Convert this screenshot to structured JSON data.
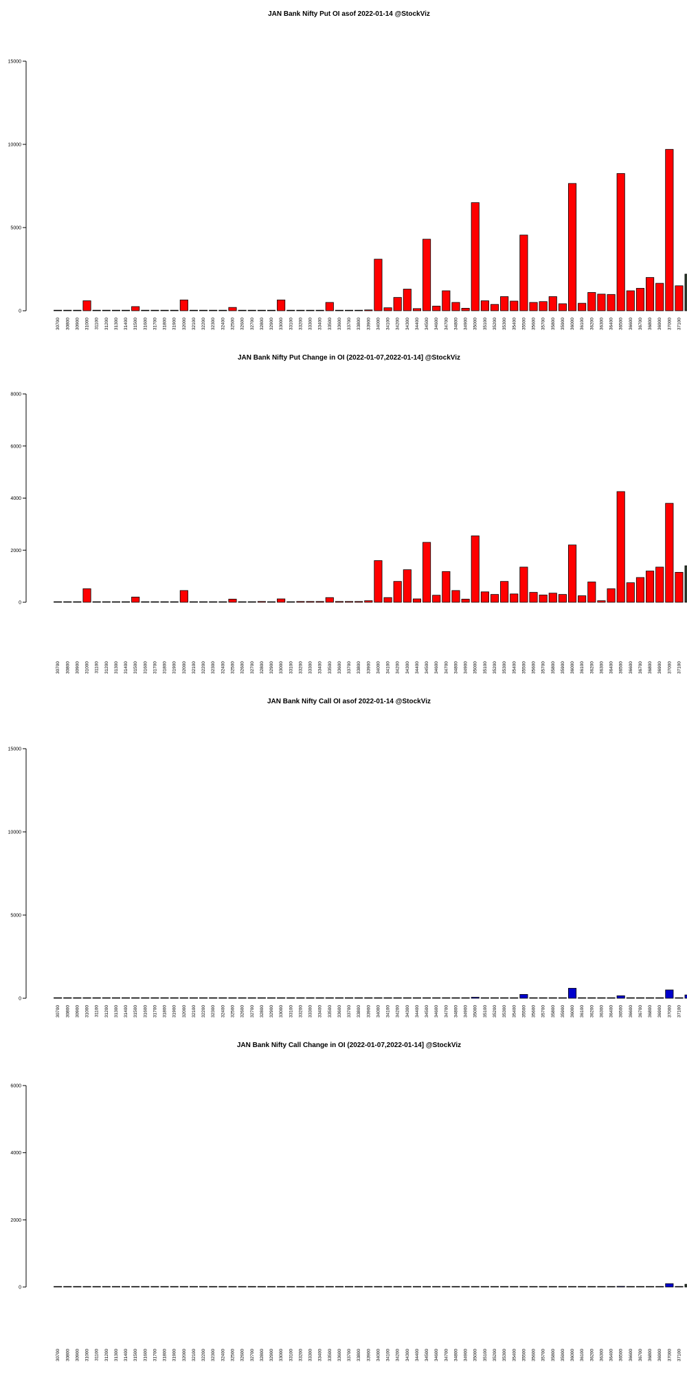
{
  "strikes": [
    "30700",
    "30800",
    "30900",
    "31000",
    "31100",
    "31200",
    "31300",
    "31400",
    "31500",
    "31600",
    "31700",
    "31800",
    "31900",
    "32000",
    "32100",
    "32200",
    "32300",
    "32400",
    "32500",
    "32600",
    "32700",
    "32800",
    "32900",
    "33000",
    "33100",
    "33200",
    "33300",
    "33400",
    "33500",
    "33600",
    "33700",
    "33800",
    "33900",
    "34000",
    "34100",
    "34200",
    "34300",
    "34400",
    "34500",
    "34600",
    "34700",
    "34800",
    "34900",
    "35000",
    "35100",
    "35200",
    "35300",
    "35400",
    "35500",
    "35600",
    "35700",
    "35800",
    "35900",
    "36000",
    "36100",
    "36200",
    "36300",
    "36400",
    "36500",
    "36600",
    "36700",
    "36800",
    "36900",
    "37000",
    "37100"
  ],
  "chart_data": [
    {
      "type": "bar",
      "title": "JAN Bank Nifty Put OI asof 2022-01-14 @StockViz",
      "xlabel": "",
      "ylabel": "",
      "ylim": [
        0,
        15000
      ],
      "yticks": [
        0,
        5000,
        10000,
        15000
      ],
      "color": "#ff0000",
      "values": [
        10,
        10,
        10,
        600,
        10,
        10,
        10,
        10,
        250,
        10,
        10,
        10,
        10,
        650,
        10,
        10,
        10,
        10,
        200,
        10,
        10,
        10,
        10,
        650,
        10,
        10,
        10,
        30,
        500,
        10,
        10,
        10,
        50,
        3100,
        180,
        800,
        1300,
        130,
        4300,
        280,
        1200,
        500,
        150,
        6500,
        600,
        380,
        850,
        580,
        4550,
        500,
        550,
        850,
        420,
        7650,
        450,
        1100,
        1000,
        980,
        8250,
        1200,
        1350,
        2000,
        1650,
        9700,
        1500
      ],
      "partial_next": {
        "value": 2200,
        "color": "#2e3b2e"
      }
    },
    {
      "type": "bar",
      "title": "JAN Bank Nifty Put Change in OI (2022-01-07,2022-01-14] @StockViz",
      "xlabel": "",
      "ylabel": "",
      "ylim": [
        0,
        8000
      ],
      "yticks": [
        0,
        2000,
        4000,
        6000,
        8000
      ],
      "color": "#ff0000",
      "values": [
        5,
        5,
        5,
        520,
        5,
        5,
        5,
        5,
        200,
        5,
        5,
        5,
        5,
        450,
        5,
        5,
        5,
        5,
        120,
        5,
        5,
        30,
        5,
        130,
        5,
        30,
        30,
        30,
        180,
        30,
        30,
        30,
        60,
        1600,
        180,
        800,
        1250,
        130,
        2300,
        270,
        1180,
        450,
        120,
        2550,
        400,
        300,
        800,
        320,
        1350,
        380,
        280,
        350,
        300,
        2200,
        250,
        780,
        60,
        520,
        4250,
        750,
        950,
        1200,
        1350,
        3800,
        1150
      ],
      "partial_next": {
        "value": 1400,
        "color": "#2e3b2e"
      }
    },
    {
      "type": "bar",
      "title": "JAN Bank Nifty Call OI asof 2022-01-14 @StockViz",
      "xlabel": "",
      "ylabel": "",
      "ylim": [
        0,
        15000
      ],
      "yticks": [
        0,
        5000,
        10000,
        15000
      ],
      "color": "#0000cc",
      "values": [
        5,
        5,
        5,
        5,
        5,
        5,
        5,
        5,
        5,
        5,
        5,
        5,
        5,
        5,
        5,
        5,
        5,
        5,
        5,
        5,
        5,
        5,
        5,
        5,
        5,
        5,
        5,
        5,
        5,
        5,
        5,
        5,
        5,
        5,
        5,
        5,
        5,
        5,
        5,
        5,
        5,
        5,
        5,
        60,
        5,
        5,
        5,
        5,
        230,
        5,
        5,
        5,
        5,
        600,
        5,
        5,
        5,
        5,
        150,
        5,
        5,
        5,
        5,
        500,
        5
      ],
      "partial_next": {
        "value": 200,
        "color": "#0000cc"
      }
    },
    {
      "type": "bar",
      "title": "JAN Bank Nifty Call Change in OI (2022-01-07,2022-01-14] @StockViz",
      "xlabel": "",
      "ylabel": "",
      "ylim": [
        0,
        6000
      ],
      "yticks": [
        0,
        2000,
        4000,
        6000
      ],
      "color": "#0000cc",
      "values": [
        5,
        5,
        5,
        5,
        5,
        5,
        5,
        5,
        5,
        5,
        5,
        5,
        5,
        5,
        5,
        5,
        5,
        5,
        5,
        5,
        5,
        5,
        5,
        5,
        5,
        5,
        5,
        5,
        5,
        5,
        5,
        5,
        5,
        5,
        5,
        5,
        5,
        5,
        5,
        5,
        5,
        5,
        5,
        5,
        5,
        5,
        5,
        5,
        5,
        5,
        5,
        5,
        5,
        5,
        5,
        5,
        5,
        5,
        20,
        5,
        5,
        5,
        5,
        100,
        5
      ],
      "partial_next": {
        "value": 80,
        "color": "#2e3b2e"
      }
    }
  ]
}
